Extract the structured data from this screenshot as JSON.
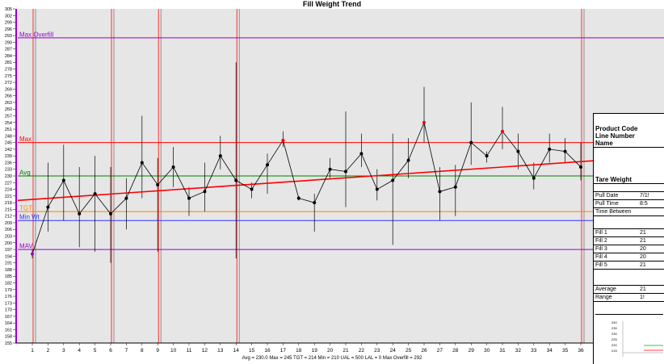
{
  "chart_data": {
    "type": "line",
    "title": "Fill Weight Trend",
    "x": [
      1,
      2,
      3,
      4,
      5,
      6,
      7,
      8,
      9,
      10,
      11,
      12,
      13,
      14,
      15,
      16,
      17,
      18,
      19,
      20,
      21,
      22,
      23,
      24,
      25,
      26,
      27,
      28,
      29,
      30,
      31,
      32,
      33,
      34,
      35,
      36
    ],
    "series": [
      {
        "values": [
          195,
          216,
          228,
          213,
          222,
          213,
          220,
          236,
          226,
          234,
          220,
          223,
          239,
          228,
          224,
          235,
          246,
          220,
          218,
          233,
          232,
          240,
          224,
          228,
          237,
          254,
          223,
          225,
          245,
          239,
          250,
          241,
          229,
          242,
          241,
          234
        ],
        "highs": [
          197,
          236,
          244,
          234,
          239,
          234,
          229,
          257,
          238,
          243,
          225,
          236,
          248,
          281,
          227,
          240,
          250,
          221,
          222,
          238,
          259,
          249,
          233,
          249,
          247,
          270,
          234,
          235,
          263,
          241,
          261,
          249,
          236,
          249,
          247,
          245
        ],
        "lows": [
          193,
          205,
          210,
          198,
          196,
          191,
          206,
          220,
          196,
          225,
          212,
          214,
          233,
          193,
          220,
          222,
          243,
          219,
          205,
          229,
          216,
          234,
          219,
          199,
          229,
          245,
          210,
          212,
          235,
          236,
          242,
          233,
          224,
          236,
          236,
          228
        ]
      }
    ],
    "highlight_points": [
      1,
      17,
      26,
      31
    ],
    "trend_line": {
      "start": 219,
      "end": 239
    },
    "reference_lines": [
      {
        "label": "Max Overfill",
        "value": 292,
        "color": "#9900cc"
      },
      {
        "label": "Max",
        "value": 245,
        "color": "#ff0000"
      },
      {
        "label": "Avg",
        "value": 230,
        "color": "#008000"
      },
      {
        "label": "TGT",
        "value": 214,
        "color": "#ff8000"
      },
      {
        "label": "Min Wt",
        "value": 210,
        "color": "#3333ff"
      },
      {
        "label": "MAV",
        "value": 197,
        "color": "#9900cc"
      }
    ],
    "vertical_markers": [
      1,
      6,
      9,
      14,
      36
    ],
    "ylim": [
      155,
      305
    ],
    "y_ticks": [
      305,
      302,
      299,
      296,
      293,
      290,
      287,
      284,
      281,
      278,
      275,
      272,
      269,
      266,
      263,
      260,
      257,
      254,
      251,
      248,
      245,
      242,
      239,
      236,
      233,
      230,
      227,
      224,
      221,
      218,
      215,
      212,
      209,
      206,
      203,
      200,
      197,
      194,
      191,
      188,
      185,
      182,
      179,
      176,
      173,
      170,
      167,
      164,
      161,
      158,
      155
    ],
    "grid": false,
    "footer": "Avg = 230.0  Max = 245  TGT = 214  Min = 210  UAL = 500  LAL = 0  Max Overfill = 292"
  },
  "panel": {
    "product_code_label": "Product Code",
    "line_number_label": "Line Number",
    "name_label": "Name",
    "tare_weight_label": "Tare Weight",
    "pull_date_label": "Pull Date",
    "pull_date_value": "7/1!",
    "pull_time_label": "Pull Time",
    "pull_time_value": "8:5",
    "time_between_label": "Time Between",
    "fills": [
      {
        "label": "Fill 1",
        "value": "21"
      },
      {
        "label": "Fill 2",
        "value": "21"
      },
      {
        "label": "Fill 3",
        "value": "20"
      },
      {
        "label": "Fill 4",
        "value": "20"
      },
      {
        "label": "Fill 5",
        "value": "21"
      }
    ],
    "average_label": "Average",
    "average_value": "21",
    "range_label": "Range",
    "range_value": "1!",
    "mini_ticks": [
      "240",
      "235",
      "230",
      "225",
      "220",
      "215"
    ]
  },
  "colors": {
    "plot_bg": "#e6e6e6",
    "axis": "#9900cc",
    "trend": "#ff0000",
    "point": "#000000",
    "highlight": "#ff0000",
    "whisker": "#000000"
  }
}
